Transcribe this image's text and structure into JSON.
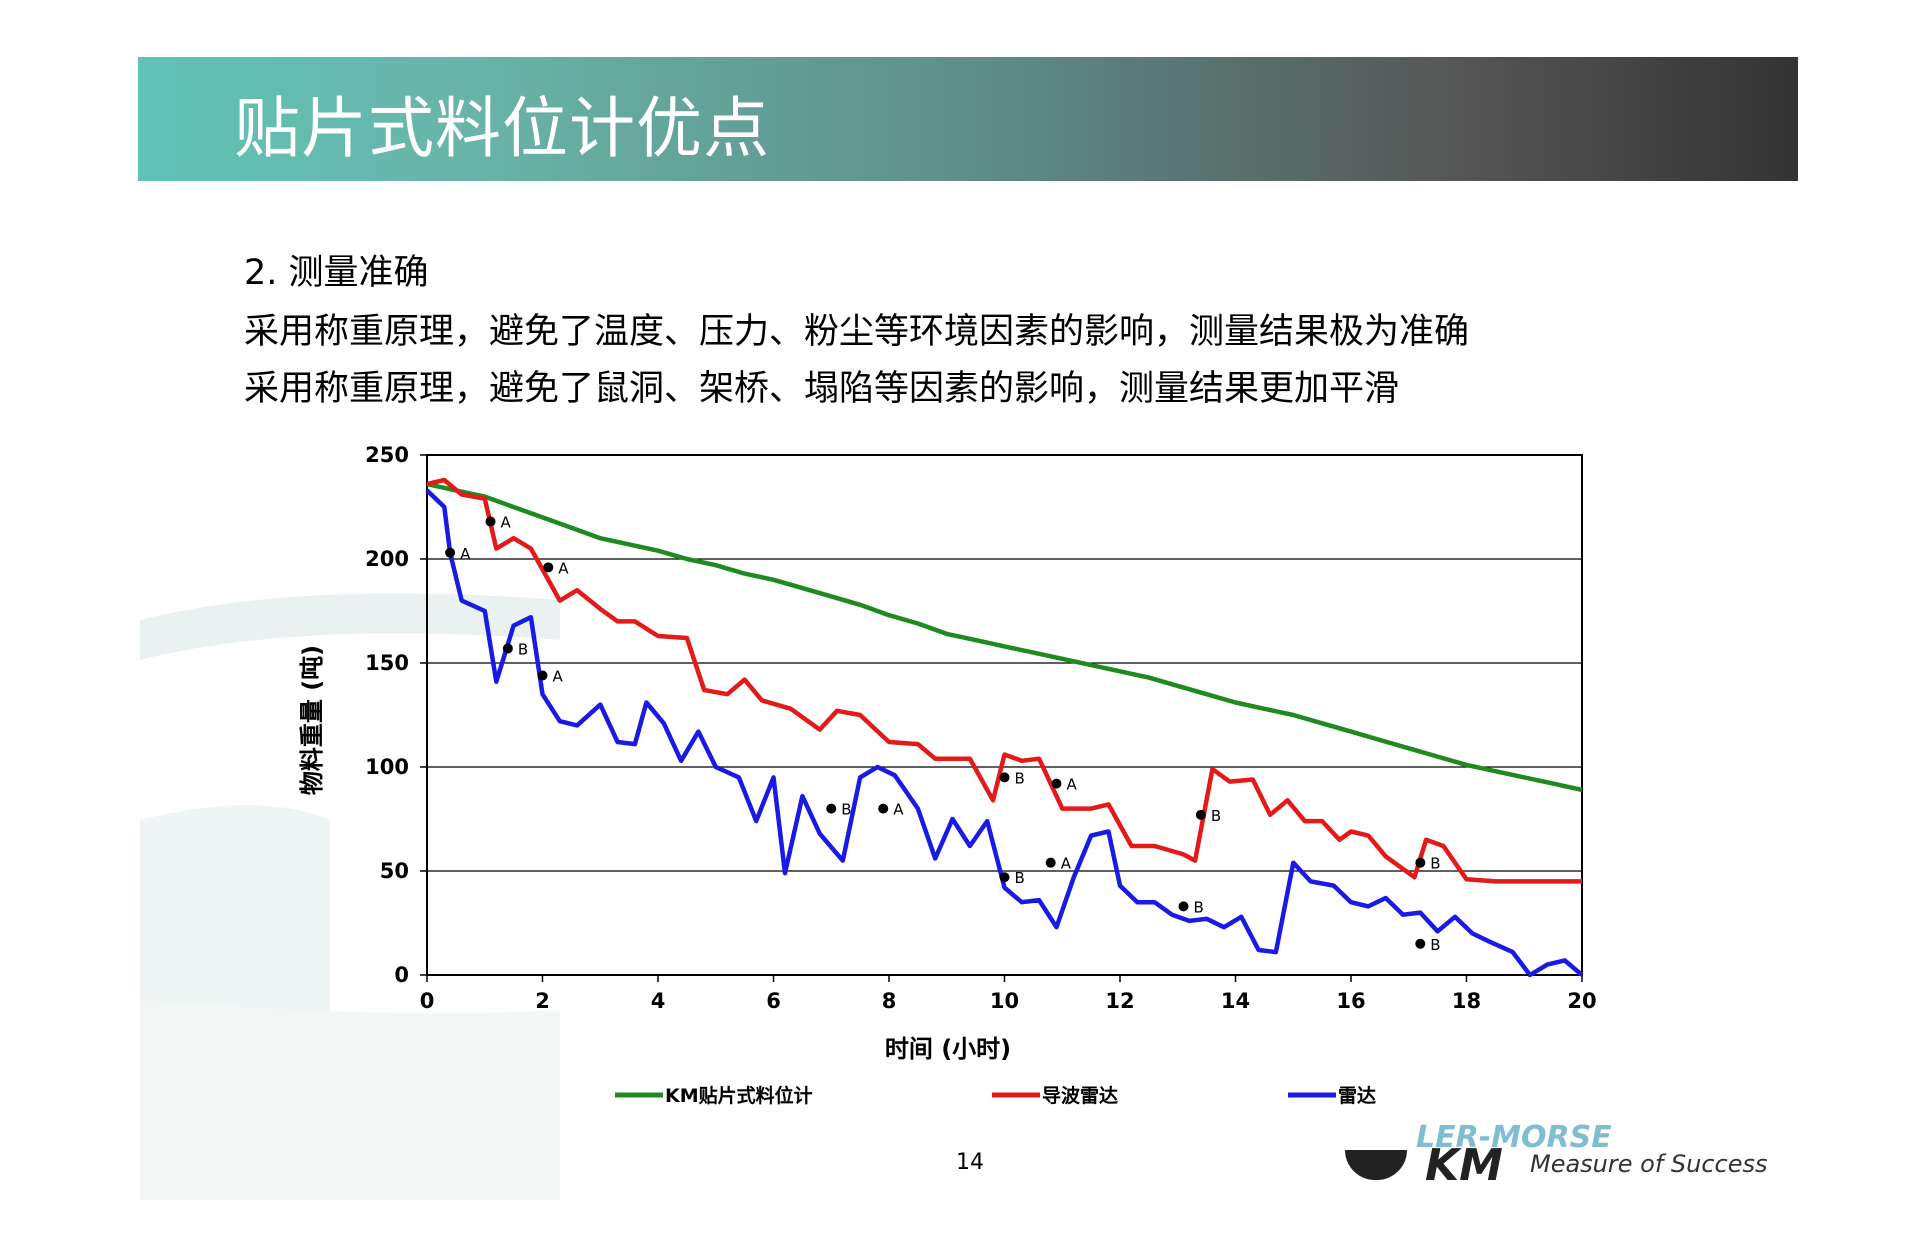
{
  "title": "贴片式料位计优点",
  "heading": "2. 测量准确",
  "lines": [
    "采用称重原理，避免了温度、压力、粉尘等环境因素的影响，测量结果极为准确",
    "采用称重原理，避免了鼠洞、架桥、塌陷等因素的影响，测量结果更加平滑"
  ],
  "page_number": "14",
  "logo": {
    "brand": "LER-MORSE",
    "tagline": "Measure of Success",
    "mark": "KM"
  },
  "colors": {
    "green": "#1f8a1f",
    "red": "#e41a1a",
    "blue": "#1a1ae6",
    "title_band_start": "#5fc3b5",
    "title_band_end": "#333333"
  },
  "chart_data": {
    "type": "line",
    "xlabel": "时间 (小时)",
    "ylabel": "物料重量 (吨)",
    "xlim": [
      0,
      20
    ],
    "ylim": [
      0,
      250
    ],
    "xticks": [
      "0",
      "2",
      "4",
      "6",
      "8",
      "10",
      "12",
      "14",
      "16",
      "18",
      "20"
    ],
    "yticks": [
      "0",
      "50",
      "100",
      "150",
      "200",
      "250"
    ],
    "grid": "horizontal",
    "legend": "bottom",
    "series": [
      {
        "name": "KM贴片式料位计",
        "color": "#1f8a1f",
        "points": [
          [
            0,
            236
          ],
          [
            0.5,
            233
          ],
          [
            1,
            230
          ],
          [
            1.5,
            225
          ],
          [
            2,
            220
          ],
          [
            2.5,
            215
          ],
          [
            3,
            210
          ],
          [
            3.5,
            207
          ],
          [
            4,
            204
          ],
          [
            4.5,
            200
          ],
          [
            5,
            197
          ],
          [
            5.5,
            193
          ],
          [
            6,
            190
          ],
          [
            6.5,
            186
          ],
          [
            7,
            182
          ],
          [
            7.5,
            178
          ],
          [
            8,
            173
          ],
          [
            8.5,
            169
          ],
          [
            9,
            164
          ],
          [
            9.5,
            161
          ],
          [
            10,
            158
          ],
          [
            10.5,
            155
          ],
          [
            11,
            152
          ],
          [
            11.5,
            149
          ],
          [
            12,
            146
          ],
          [
            12.5,
            143
          ],
          [
            13,
            139
          ],
          [
            13.5,
            135
          ],
          [
            14,
            131
          ],
          [
            14.5,
            128
          ],
          [
            15,
            125
          ],
          [
            15.5,
            121
          ],
          [
            16,
            117
          ],
          [
            16.5,
            113
          ],
          [
            17,
            109
          ],
          [
            17.5,
            105
          ],
          [
            18,
            101
          ],
          [
            18.5,
            98
          ],
          [
            19,
            95
          ],
          [
            19.5,
            92
          ],
          [
            20,
            89
          ]
        ]
      },
      {
        "name": "导波雷达",
        "color": "#e41a1a",
        "points": [
          [
            0,
            236
          ],
          [
            0.3,
            238
          ],
          [
            0.6,
            231
          ],
          [
            1,
            229
          ],
          [
            1.2,
            205
          ],
          [
            1.5,
            210
          ],
          [
            1.8,
            205
          ],
          [
            2,
            195
          ],
          [
            2.3,
            180
          ],
          [
            2.6,
            185
          ],
          [
            3,
            176
          ],
          [
            3.3,
            170
          ],
          [
            3.6,
            170
          ],
          [
            4,
            163
          ],
          [
            4.5,
            162
          ],
          [
            4.8,
            137
          ],
          [
            5.2,
            135
          ],
          [
            5.5,
            142
          ],
          [
            5.8,
            132
          ],
          [
            6.3,
            128
          ],
          [
            6.8,
            118
          ],
          [
            7.1,
            127
          ],
          [
            7.5,
            125
          ],
          [
            8,
            112
          ],
          [
            8.5,
            111
          ],
          [
            8.8,
            104
          ],
          [
            9.4,
            104
          ],
          [
            9.8,
            84
          ],
          [
            10,
            106
          ],
          [
            10.3,
            103
          ],
          [
            10.6,
            104
          ],
          [
            11,
            80
          ],
          [
            11.5,
            80
          ],
          [
            11.8,
            82
          ],
          [
            12.2,
            62
          ],
          [
            12.6,
            62
          ],
          [
            13.1,
            58
          ],
          [
            13.3,
            55
          ],
          [
            13.6,
            99
          ],
          [
            13.9,
            93
          ],
          [
            14.3,
            94
          ],
          [
            14.6,
            77
          ],
          [
            14.9,
            84
          ],
          [
            15.2,
            74
          ],
          [
            15.5,
            74
          ],
          [
            15.8,
            65
          ],
          [
            16,
            69
          ],
          [
            16.3,
            67
          ],
          [
            16.6,
            57
          ],
          [
            16.9,
            51
          ],
          [
            17.1,
            47
          ],
          [
            17.3,
            65
          ],
          [
            17.6,
            62
          ],
          [
            18,
            46
          ],
          [
            18.5,
            45
          ],
          [
            20,
            45
          ]
        ]
      },
      {
        "name": "雷达",
        "color": "#1a1ae6",
        "points": [
          [
            0,
            233
          ],
          [
            0.3,
            225
          ],
          [
            0.4,
            203
          ],
          [
            0.6,
            180
          ],
          [
            1,
            175
          ],
          [
            1.2,
            141
          ],
          [
            1.5,
            168
          ],
          [
            1.8,
            172
          ],
          [
            2,
            135
          ],
          [
            2.3,
            122
          ],
          [
            2.6,
            120
          ],
          [
            3,
            130
          ],
          [
            3.3,
            112
          ],
          [
            3.6,
            111
          ],
          [
            3.8,
            131
          ],
          [
            4.1,
            121
          ],
          [
            4.4,
            103
          ],
          [
            4.7,
            117
          ],
          [
            5,
            100
          ],
          [
            5.4,
            95
          ],
          [
            5.7,
            74
          ],
          [
            6,
            95
          ],
          [
            6.2,
            49
          ],
          [
            6.5,
            86
          ],
          [
            6.8,
            68
          ],
          [
            7.2,
            55
          ],
          [
            7.5,
            95
          ],
          [
            7.8,
            100
          ],
          [
            8.1,
            96
          ],
          [
            8.5,
            80
          ],
          [
            8.8,
            56
          ],
          [
            9.1,
            75
          ],
          [
            9.4,
            62
          ],
          [
            9.7,
            74
          ],
          [
            10,
            42
          ],
          [
            10.3,
            35
          ],
          [
            10.6,
            36
          ],
          [
            10.9,
            23
          ],
          [
            11.2,
            47
          ],
          [
            11.5,
            67
          ],
          [
            11.8,
            69
          ],
          [
            12,
            43
          ],
          [
            12.3,
            35
          ],
          [
            12.6,
            35
          ],
          [
            12.9,
            29
          ],
          [
            13.2,
            26
          ],
          [
            13.5,
            27
          ],
          [
            13.8,
            23
          ],
          [
            14.1,
            28
          ],
          [
            14.4,
            12
          ],
          [
            14.7,
            11
          ],
          [
            15,
            54
          ],
          [
            15.3,
            45
          ],
          [
            15.7,
            43
          ],
          [
            16,
            35
          ],
          [
            16.3,
            33
          ],
          [
            16.6,
            37
          ],
          [
            16.9,
            29
          ],
          [
            17.2,
            30
          ],
          [
            17.5,
            21
          ],
          [
            17.8,
            28
          ],
          [
            18.1,
            20
          ],
          [
            18.4,
            16
          ],
          [
            18.8,
            11
          ],
          [
            19.1,
            0
          ],
          [
            19.4,
            5
          ],
          [
            19.7,
            7
          ],
          [
            20,
            0
          ]
        ]
      }
    ],
    "annotations": [
      {
        "label": "A",
        "x": 0.4,
        "y": 203,
        "color": "#000000"
      },
      {
        "label": "A",
        "x": 1.1,
        "y": 218,
        "color": "#000000"
      },
      {
        "label": "B",
        "x": 1.4,
        "y": 157,
        "color": "#000000"
      },
      {
        "label": "A",
        "x": 2.0,
        "y": 144,
        "color": "#000000"
      },
      {
        "label": "A",
        "x": 2.1,
        "y": 196,
        "color": "#000000"
      },
      {
        "label": "B",
        "x": 7.0,
        "y": 80,
        "color": "#000000"
      },
      {
        "label": "A",
        "x": 7.9,
        "y": 80,
        "color": "#000000"
      },
      {
        "label": "B",
        "x": 10.0,
        "y": 95,
        "color": "#000000"
      },
      {
        "label": "A",
        "x": 10.9,
        "y": 92,
        "color": "#000000"
      },
      {
        "label": "B",
        "x": 10.0,
        "y": 47,
        "color": "#000000"
      },
      {
        "label": "A",
        "x": 10.8,
        "y": 54,
        "color": "#000000"
      },
      {
        "label": "B",
        "x": 13.1,
        "y": 33,
        "color": "#000000"
      },
      {
        "label": "B",
        "x": 13.4,
        "y": 77,
        "color": "#000000"
      },
      {
        "label": "B",
        "x": 17.2,
        "y": 54,
        "color": "#000000"
      },
      {
        "label": "B",
        "x": 17.2,
        "y": 15,
        "color": "#000000"
      }
    ]
  }
}
